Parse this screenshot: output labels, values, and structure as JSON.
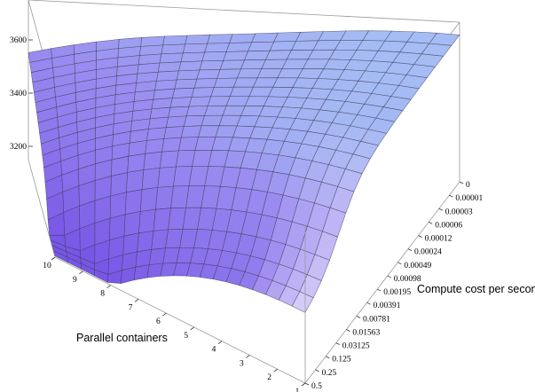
{
  "chart_data": {
    "type": "surface3d",
    "x_axis": {
      "label": "Parallel containers",
      "ticks": [
        "1",
        "2",
        "3",
        "4",
        "5",
        "6",
        "7",
        "8",
        "9",
        "10"
      ],
      "range": [
        1,
        10
      ]
    },
    "y_axis": {
      "label": "Compute cost per second",
      "ticks": [
        "0",
        "0.00001",
        "0.00003",
        "0.00006",
        "0.00012",
        "0.00024",
        "0.00049",
        "0.00098",
        "0.00195",
        "0.00391",
        "0.00781",
        "0.01563",
        "0.03125",
        "0.125",
        "0.25",
        "0.5"
      ]
    },
    "z_axis": {
      "label": "",
      "ticks": [
        "3200",
        "3400",
        "3600"
      ],
      "range": [
        3150,
        3750
      ]
    },
    "grid_size": [
      19,
      19
    ],
    "surface_model": {
      "plateau": 3700,
      "min_at_high_cost": 3230,
      "min_at_many_containers": 3170,
      "note_shape": "high plateau at low cost; drops toward high compute cost and many containers"
    },
    "colors": {
      "high": "#a9cdf5",
      "mid": "#9a8cf0",
      "low": "#7755e6",
      "edge_light": "#ede6fb",
      "mesh": "#3a3a55",
      "box": "#9a9a9a"
    }
  }
}
